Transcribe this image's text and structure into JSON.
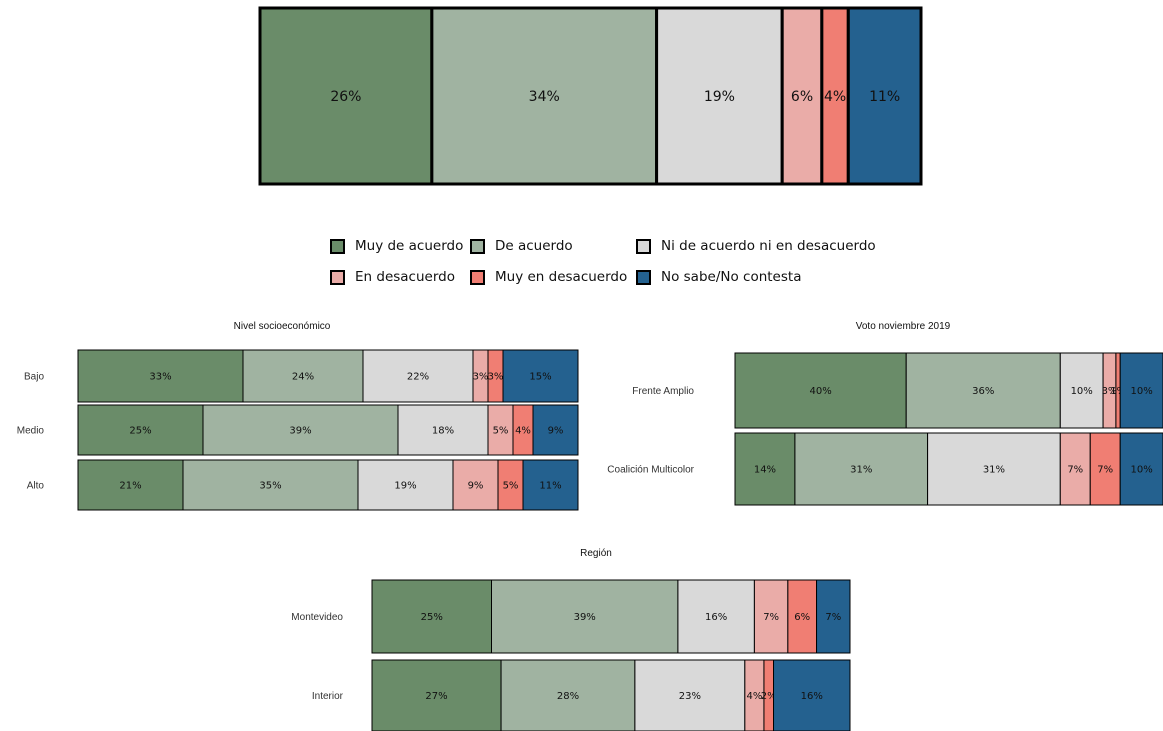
{
  "chart_data": [
    {
      "type": "bar",
      "orientation": "horizontal",
      "stacked": true,
      "panel": "overall",
      "title": "",
      "categories": [
        ""
      ],
      "series": [
        {
          "name": "Muy de acuerdo",
          "values": [
            26
          ]
        },
        {
          "name": "De acuerdo",
          "values": [
            34
          ]
        },
        {
          "name": "Ni de acuerdo ni en desacuerdo",
          "values": [
            19
          ]
        },
        {
          "name": "En desacuerdo",
          "values": [
            6
          ]
        },
        {
          "name": "Muy en desacuerdo",
          "values": [
            4
          ]
        },
        {
          "name": "No sabe/No contesta",
          "values": [
            11
          ]
        }
      ]
    },
    {
      "type": "bar",
      "orientation": "horizontal",
      "stacked": true,
      "panel": "nse",
      "title": "Nivel socioeconómico",
      "categories": [
        "Bajo",
        "Medio",
        "Alto"
      ],
      "series": [
        {
          "name": "Muy de acuerdo",
          "values": [
            33,
            25,
            21
          ]
        },
        {
          "name": "De acuerdo",
          "values": [
            24,
            39,
            35
          ]
        },
        {
          "name": "Ni de acuerdo ni en desacuerdo",
          "values": [
            22,
            18,
            19
          ]
        },
        {
          "name": "En desacuerdo",
          "values": [
            3,
            5,
            9
          ]
        },
        {
          "name": "Muy en desacuerdo",
          "values": [
            3,
            4,
            5
          ]
        },
        {
          "name": "No sabe/No contesta",
          "values": [
            15,
            9,
            11
          ]
        }
      ]
    },
    {
      "type": "bar",
      "orientation": "horizontal",
      "stacked": true,
      "panel": "voto",
      "title": "Voto noviembre 2019",
      "categories": [
        "Frente Amplio",
        "Coalición Multicolor"
      ],
      "series": [
        {
          "name": "Muy de acuerdo",
          "values": [
            40,
            14
          ]
        },
        {
          "name": "De acuerdo",
          "values": [
            36,
            31
          ]
        },
        {
          "name": "Ni de acuerdo ni en desacuerdo",
          "values": [
            10,
            31
          ]
        },
        {
          "name": "En desacuerdo",
          "values": [
            3,
            7
          ]
        },
        {
          "name": "Muy en desacuerdo",
          "values": [
            1,
            7
          ]
        },
        {
          "name": "No sabe/No contesta",
          "values": [
            10,
            10
          ]
        }
      ]
    },
    {
      "type": "bar",
      "orientation": "horizontal",
      "stacked": true,
      "panel": "region",
      "title": "Región",
      "categories": [
        "Montevideo",
        "Interior"
      ],
      "series": [
        {
          "name": "Muy de acuerdo",
          "values": [
            25,
            27
          ]
        },
        {
          "name": "De acuerdo",
          "values": [
            39,
            28
          ]
        },
        {
          "name": "Ni de acuerdo ni en desacuerdo",
          "values": [
            16,
            23
          ]
        },
        {
          "name": "En desacuerdo",
          "values": [
            7,
            4
          ]
        },
        {
          "name": "Muy en desacuerdo",
          "values": [
            6,
            2
          ]
        },
        {
          "name": "No sabe/No contesta",
          "values": [
            7,
            16
          ]
        }
      ]
    }
  ],
  "legend": {
    "items": [
      {
        "label": "Muy de acuerdo",
        "color": "#6a8c69"
      },
      {
        "label": "De acuerdo",
        "color": "#a0b3a1"
      },
      {
        "label": "Ni de acuerdo ni en desacuerdo",
        "color": "#d9d9d9"
      },
      {
        "label": "En desacuerdo",
        "color": "#eaaca8"
      },
      {
        "label": "Muy en desacuerdo",
        "color": "#f07e73"
      },
      {
        "label": "No sabe/No contesta",
        "color": "#24618f"
      }
    ]
  }
}
